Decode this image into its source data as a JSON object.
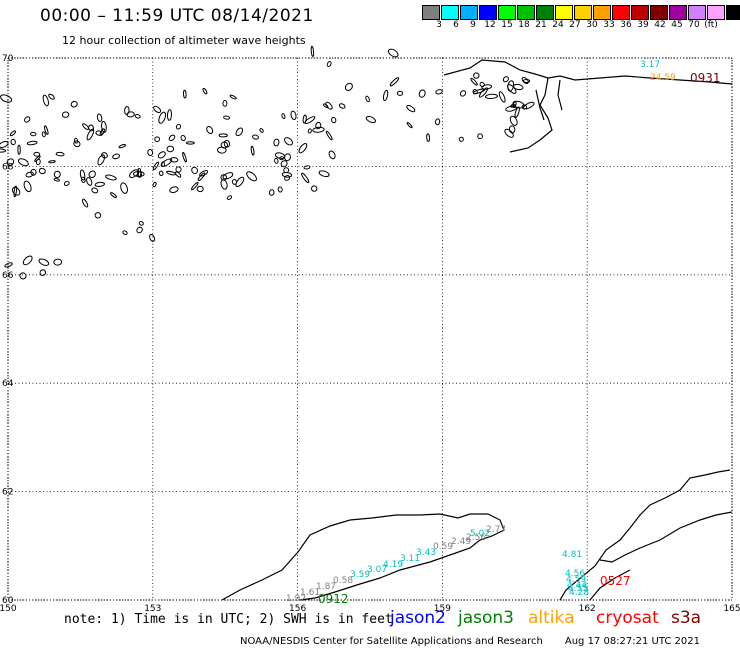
{
  "header": {
    "title": "00:00 – 11:59 UTC 08/14/2021",
    "subtitle": "12 hour collection of altimeter wave heights"
  },
  "colorbar": {
    "colors": [
      "#7f7f7f",
      "#00ffff",
      "#00b0ff",
      "#0000ff",
      "#00ff00",
      "#00c000",
      "#008000",
      "#ffff00",
      "#ffd000",
      "#ffa000",
      "#ff0000",
      "#c00000",
      "#800000",
      "#a000a0",
      "#d080ff",
      "#ffa0ff",
      "#000000"
    ],
    "labels": [
      "3",
      "6",
      "9",
      "12",
      "15",
      "18",
      "21",
      "24",
      "27",
      "30",
      "33",
      "36",
      "39",
      "42",
      "45",
      "70",
      "(ft)"
    ]
  },
  "map": {
    "x_axis": {
      "label_ticks": [
        "150",
        "153",
        "156",
        "159",
        "162",
        "165"
      ],
      "values": [
        150,
        153,
        156,
        159,
        162,
        165
      ]
    },
    "y_axis": {
      "label_ticks": [
        "70",
        "68",
        "66",
        "64",
        "62",
        "60"
      ],
      "values": [
        70,
        68,
        66,
        64,
        62,
        60
      ]
    },
    "grid": "dotted",
    "tracks": [
      {
        "satellite": "jason3",
        "time": "0912",
        "color": "#008000",
        "readings": [
          {
            "text": "1.92",
            "color": "#808080"
          },
          {
            "text": "1.61",
            "color": "#808080"
          },
          {
            "text": "1.87",
            "color": "#808080"
          },
          {
            "text": "0.58",
            "color": "#808080"
          },
          {
            "text": "3.59",
            "color": "#00c0c0"
          },
          {
            "text": "3.07",
            "color": "#00c0c0"
          },
          {
            "text": "4.19",
            "color": "#00c0c0"
          },
          {
            "text": "3.11",
            "color": "#00c0c0"
          },
          {
            "text": "3.43",
            "color": "#00c0c0"
          },
          {
            "text": "0.59",
            "color": "#808080"
          },
          {
            "text": "2.49",
            "color": "#808080"
          },
          {
            "text": "2.56",
            "color": "#808080"
          },
          {
            "text": "5.02",
            "color": "#00c0c0"
          },
          {
            "text": "2.77",
            "color": "#808080"
          }
        ]
      },
      {
        "satellite": "cryosat",
        "time": "0527",
        "color": "#ff0000",
        "readings": [
          {
            "text": "4.81",
            "color": "#00c0c0"
          },
          {
            "text": "4.56",
            "color": "#00c0c0"
          },
          {
            "text": "4.59",
            "color": "#00c0c0"
          },
          {
            "text": "4.44",
            "color": "#00c0c0"
          },
          {
            "text": "4.55",
            "color": "#00c0c0"
          },
          {
            "text": "4.28",
            "color": "#00c0c0"
          }
        ]
      },
      {
        "satellite": "s3a",
        "time": "0931",
        "color": "#800000",
        "readings": [
          {
            "text": "3.17",
            "color": "#00c0c0"
          },
          {
            "text": "24.59",
            "color": "#ffa000"
          }
        ]
      }
    ]
  },
  "footer": {
    "note": "note: 1) Time is in UTC; 2) SWH is in feet",
    "legend": [
      {
        "name": "jason2",
        "color": "#0000ff"
      },
      {
        "name": "jason3",
        "color": "#008000"
      },
      {
        "name": "altika",
        "color": "#ffa000"
      },
      {
        "name": "cryosat",
        "color": "#ff0000"
      },
      {
        "name": "s3a",
        "color": "#800000"
      }
    ],
    "credit": "NOAA/NESDIS Center for Satellite Applications and Research",
    "timestamp": "Aug 17 08:27:21 UTC 2021"
  }
}
